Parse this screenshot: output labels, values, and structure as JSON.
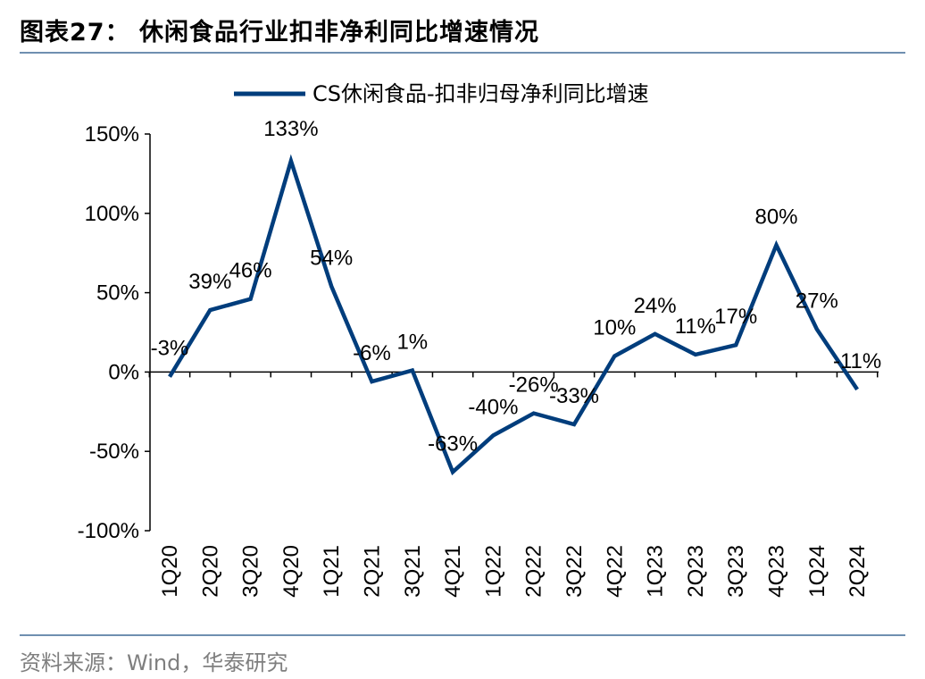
{
  "header": {
    "title": "图表27： 休闲食品行业扣非净利同比增速情况"
  },
  "footer": {
    "source": "资料来源：Wind，华泰研究"
  },
  "chart_data": {
    "type": "line",
    "title": "",
    "xlabel": "",
    "ylabel": "",
    "ylim": [
      -100,
      150
    ],
    "yticks": [
      150,
      100,
      50,
      0,
      -50,
      -100
    ],
    "ytick_labels": [
      "150%",
      "100%",
      "50%",
      "0%",
      "-50%",
      "-100%"
    ],
    "legend_position": "top-center",
    "line_color": "#003d7c",
    "categories": [
      "1Q20",
      "2Q20",
      "3Q20",
      "4Q20",
      "1Q21",
      "2Q21",
      "3Q21",
      "4Q21",
      "1Q22",
      "2Q22",
      "3Q22",
      "4Q22",
      "1Q23",
      "2Q23",
      "3Q23",
      "4Q23",
      "1Q24",
      "2Q24"
    ],
    "series": [
      {
        "name": "CS休闲食品-扣非归母净利同比增速",
        "values": [
          -3,
          39,
          46,
          133,
          54,
          -6,
          1,
          -63,
          -40,
          -26,
          -33,
          10,
          24,
          11,
          17,
          80,
          27,
          -11
        ],
        "labels": [
          "-3%",
          "39%",
          "46%",
          "133%",
          "54%",
          "-6%",
          "1%",
          "-63%",
          "-40%",
          "-26%",
          "-33%",
          "10%",
          "24%",
          "11%",
          "17%",
          "80%",
          "27%",
          "-11%"
        ]
      }
    ]
  }
}
